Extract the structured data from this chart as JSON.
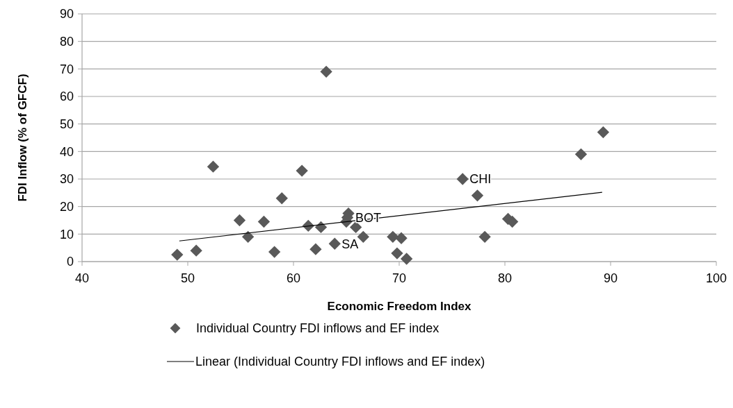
{
  "chart_data": {
    "type": "scatter",
    "xlabel": "Economic Freedom Index",
    "ylabel": "FDI Inflow (% of GFCF)",
    "xlim": [
      40,
      100
    ],
    "xticks": [
      40,
      50,
      60,
      70,
      80,
      90,
      100
    ],
    "ylim": [
      0,
      90
    ],
    "yticks": [
      0,
      10,
      20,
      30,
      40,
      50,
      60,
      70,
      80,
      90
    ],
    "grid": "y",
    "legend": "bottom",
    "marker": "diamond",
    "series": [
      {
        "name": "Individual Country FDI inflows and EF index",
        "color": "#595959",
        "x": [
          49.0,
          50.8,
          52.4,
          54.9,
          55.7,
          57.2,
          58.2,
          58.9,
          60.8,
          61.4,
          62.1,
          62.6,
          63.1,
          63.9,
          65.2,
          65.0,
          65.1,
          65.9,
          66.6,
          69.4,
          70.2,
          69.8,
          70.7,
          76.0,
          77.4,
          78.1,
          80.3,
          80.7,
          87.2,
          89.3
        ],
        "values": [
          2.5,
          4,
          34.5,
          15,
          9,
          14.5,
          3.5,
          23,
          33,
          13,
          4.5,
          12.5,
          69,
          6.5,
          17.5,
          14.5,
          16,
          12.5,
          9,
          9,
          8.5,
          3,
          1,
          30,
          24,
          9,
          15.5,
          14.5,
          39,
          47
        ]
      },
      {
        "name": "Linear (Individual Country FDI inflows and EF index)",
        "type": "line",
        "color": "#000000",
        "marker": "none",
        "x": [
          49.2,
          89.2
        ],
        "values": [
          7.5,
          25.2
        ]
      }
    ],
    "annotations": [
      {
        "text": "CHI",
        "x": 76.0,
        "y": 30
      },
      {
        "text": "BOT",
        "x": 65.2,
        "y": 16
      },
      {
        "text": "SA",
        "x": 63.9,
        "y": 6.5
      }
    ]
  }
}
